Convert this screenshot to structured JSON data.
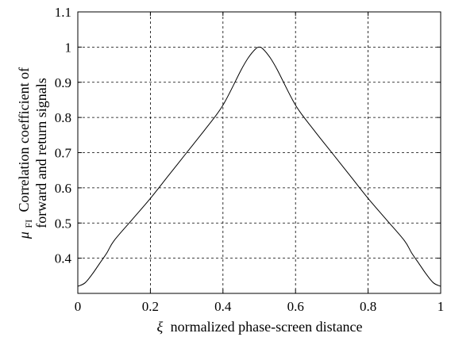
{
  "chart_data": {
    "type": "line",
    "xlabel": {
      "symbol": "ξ",
      "text": "normalized phase-screen distance"
    },
    "ylabel": {
      "symbol": "μ",
      "subscript": "FI",
      "line1": "Correlation coefficient of",
      "line2": "forward and return signals"
    },
    "xlim": [
      0,
      1
    ],
    "ylim": [
      0.3,
      1.1
    ],
    "xticks": [
      "0",
      "0.2",
      "0.4",
      "0.6",
      "0.8",
      "1"
    ],
    "yticks": [
      "0.4",
      "0.5",
      "0.6",
      "0.7",
      "0.8",
      "0.9",
      "1",
      "1.1"
    ],
    "grid": true,
    "series": [
      {
        "color": "#000000",
        "x": [
          0,
          0.02,
          0.04,
          0.06,
          0.08,
          0.1,
          0.15,
          0.2,
          0.25,
          0.3,
          0.35,
          0.4,
          0.45,
          0.47,
          0.49,
          0.5,
          0.51,
          0.53,
          0.55,
          0.6,
          0.65,
          0.7,
          0.75,
          0.8,
          0.85,
          0.9,
          0.92,
          0.94,
          0.96,
          0.98,
          1.0
        ],
        "y": [
          0.32,
          0.33,
          0.355,
          0.385,
          0.415,
          0.45,
          0.51,
          0.57,
          0.635,
          0.7,
          0.765,
          0.835,
          0.935,
          0.97,
          0.995,
          1.0,
          0.995,
          0.97,
          0.935,
          0.835,
          0.765,
          0.7,
          0.635,
          0.57,
          0.51,
          0.45,
          0.415,
          0.385,
          0.355,
          0.33,
          0.32
        ]
      }
    ]
  }
}
